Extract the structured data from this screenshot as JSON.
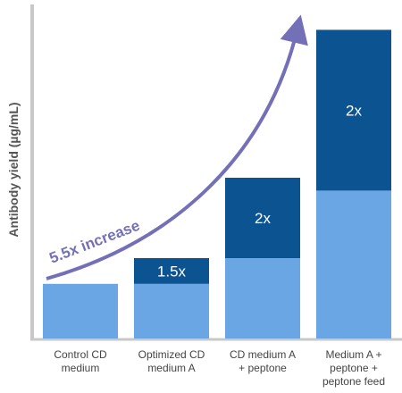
{
  "chart_data": {
    "type": "bar",
    "stacked": true,
    "ylabel": "Antibody yield (µg/mL)",
    "xlabel": "",
    "categories": [
      [
        "Control CD",
        "medium"
      ],
      [
        "Optimized CD",
        "medium A"
      ],
      [
        "CD medium A",
        "+ peptone"
      ],
      [
        "Medium A +",
        "peptone +",
        "peptone feed"
      ]
    ],
    "ylim": [
      0,
      100
    ],
    "yticks_shown": false,
    "grid": false,
    "series": [
      {
        "values": [
          17,
          17,
          25,
          46
        ],
        "color": "#6aa6e4"
      },
      {
        "values": [
          0,
          8,
          25,
          50
        ],
        "color": "#0b5391",
        "labels": [
          "",
          "1.5x",
          "2x",
          "2x"
        ]
      }
    ],
    "annotation": {
      "text": "5.5x increase",
      "color": "#7470b8"
    },
    "colors": {
      "axis": "#c8c8c8",
      "arrow": "#7470b8"
    }
  }
}
